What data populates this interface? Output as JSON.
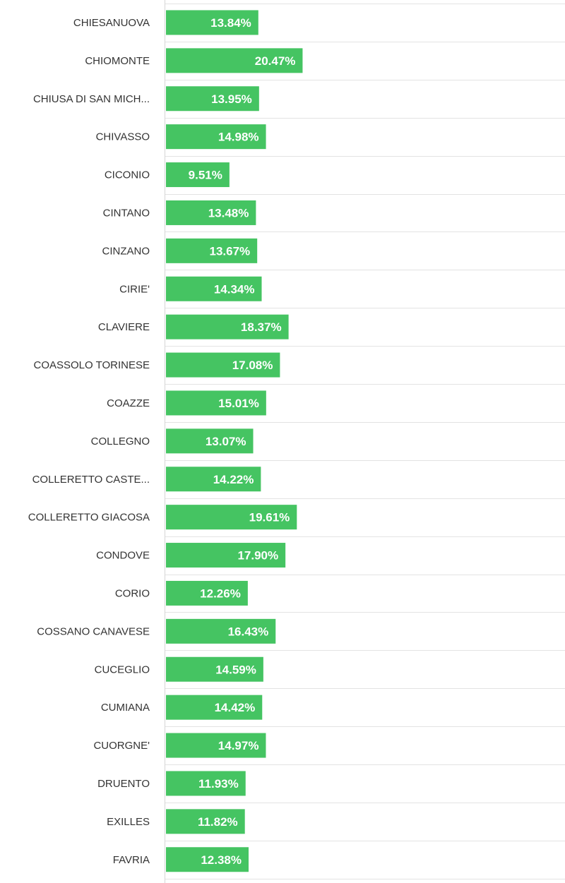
{
  "chart_data": {
    "type": "bar",
    "orientation": "horizontal",
    "title": "",
    "xlabel": "",
    "ylabel": "",
    "categories": [
      "CHIESANUOVA",
      "CHIOMONTE",
      "CHIUSA DI SAN MICH...",
      "CHIVASSO",
      "CICONIO",
      "CINTANO",
      "CINZANO",
      "CIRIE'",
      "CLAVIERE",
      "COASSOLO TORINESE",
      "COAZZE",
      "COLLEGNO",
      "COLLERETTO CASTE...",
      "COLLERETTO GIACOSA",
      "CONDOVE",
      "CORIO",
      "COSSANO CANAVESE",
      "CUCEGLIO",
      "CUMIANA",
      "CUORGNE'",
      "DRUENTO",
      "EXILLES",
      "FAVRIA"
    ],
    "values": [
      13.84,
      20.47,
      13.95,
      14.98,
      9.51,
      13.48,
      13.67,
      14.34,
      18.37,
      17.08,
      15.01,
      13.07,
      14.22,
      19.61,
      17.9,
      12.26,
      16.43,
      14.59,
      14.42,
      14.97,
      11.93,
      11.82,
      12.38
    ],
    "value_labels": [
      "13.84%",
      "20.47%",
      "13.95%",
      "14.98%",
      "9.51%",
      "13.48%",
      "13.67%",
      "14.34%",
      "18.37%",
      "17.08%",
      "15.01%",
      "13.07%",
      "14.22%",
      "19.61%",
      "17.90%",
      "12.26%",
      "16.43%",
      "14.59%",
      "14.42%",
      "14.97%",
      "11.93%",
      "11.82%",
      "12.38%"
    ],
    "unit": "%",
    "grid": true,
    "legend": "none",
    "colors": {
      "bar": "#45c462",
      "bar_label": "#ffffff",
      "category_label": "#333333",
      "grid": "#e3e3e3",
      "axis": "#d6d6d6"
    }
  }
}
